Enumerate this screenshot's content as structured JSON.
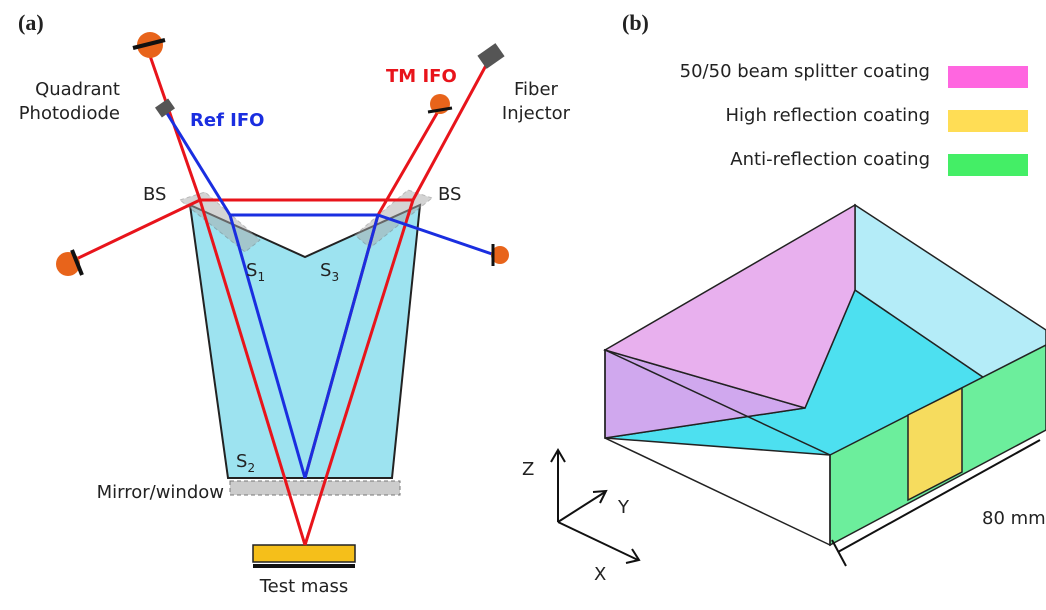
{
  "panel_a": {
    "label": "(a)",
    "quadrant_photodiode": [
      "Quadrant",
      "Photodiode"
    ],
    "ref_ifo": "Ref IFO",
    "tm_ifo": "TM IFO",
    "fiber_injector": [
      "Fiber",
      "Injector"
    ],
    "bs_left": "BS",
    "bs_right": "BS",
    "s1": {
      "main": "S",
      "sub": "1"
    },
    "s3": {
      "main": "S",
      "sub": "3"
    },
    "s2": {
      "main": "S",
      "sub": "2"
    },
    "mirror_window": "Mirror/window",
    "test_mass": "Test mass"
  },
  "panel_b": {
    "label": "(b)",
    "legend": [
      "50/50 beam splitter coating",
      "High reflection coating",
      "Anti-reflection coating"
    ],
    "axes": {
      "z": "Z",
      "y": "Y",
      "x": "X"
    },
    "dimension": "80 mm"
  }
}
